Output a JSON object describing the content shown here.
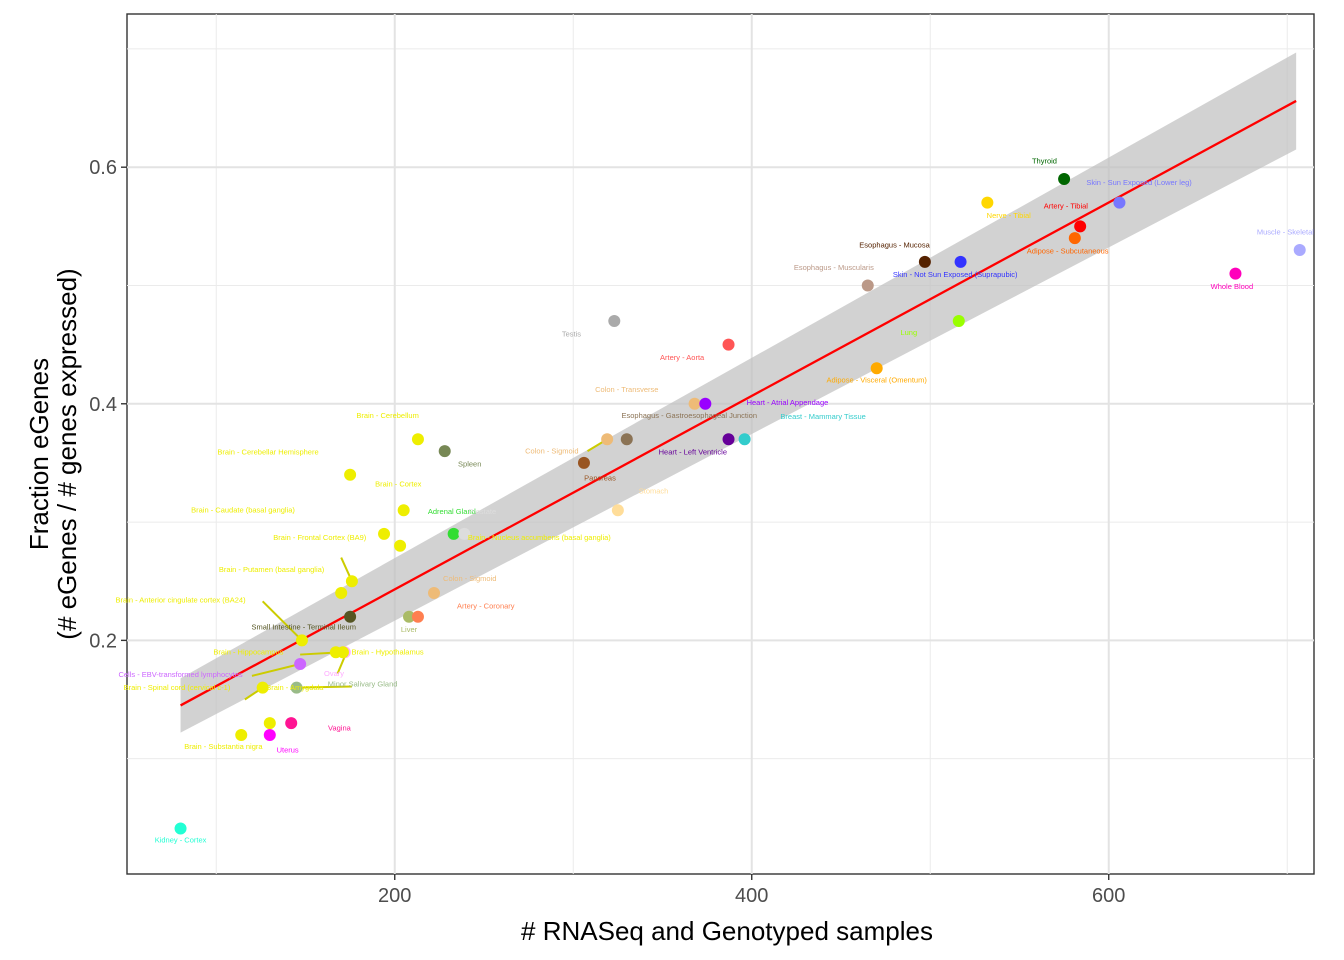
{
  "chart_data": {
    "type": "scatter",
    "xlabel": "# RNASeq and Genotyped samples",
    "ylabel_lines": [
      "Fraction eGenes",
      "(# eGenes / # genes expressed)"
    ],
    "xlim": [
      50,
      715
    ],
    "ylim": [
      0.0025,
      0.7295
    ],
    "x_ticks": [
      200,
      400,
      600
    ],
    "y_ticks": [
      0.2,
      0.4,
      0.6
    ],
    "x_tick_labels": [
      "200",
      "400",
      "600"
    ],
    "y_tick_labels": [
      "0.2",
      "0.4",
      "0.6"
    ],
    "grid": true,
    "fit": {
      "x0": 80,
      "y0": 0.145,
      "x1": 705,
      "y1": 0.656,
      "ci_low": [
        0.122,
        0.615
      ],
      "ci_high": [
        0.168,
        0.697
      ]
    },
    "points": [
      {
        "label": "Kidney - Cortex",
        "x": 80,
        "y": 0.041,
        "color": "#22FFD4",
        "lx": 80,
        "ly": 0.029
      },
      {
        "label": "Brain - Substantia nigra",
        "x": 114,
        "y": 0.12,
        "color": "#EEEE00",
        "lx": 104,
        "ly": 0.108
      },
      {
        "label": "Uterus",
        "x": 130,
        "y": 0.12,
        "color": "#FF00FF",
        "lx": 140,
        "ly": 0.105
      },
      {
        "label": "Vagina",
        "x": 142,
        "y": 0.13,
        "color": "#FF1493",
        "lx": 169,
        "ly": 0.124
      },
      {
        "label": "Brain - Spinal cord (cervical c-1)",
        "x": 130,
        "y": 0.13,
        "color": "#EEEE00",
        "lx": 78,
        "ly": 0.158
      },
      {
        "label": "Brain - Amygdala",
        "x": 126,
        "y": 0.16,
        "color": "#EEEE00",
        "lx": 144,
        "ly": 0.158
      },
      {
        "label": "Minor Salivary Gland",
        "x": 145,
        "y": 0.16,
        "color": "#99BB88",
        "lx": 182,
        "ly": 0.161
      },
      {
        "label": "Cells - EBV-transformed lymphocytes",
        "x": 147,
        "y": 0.18,
        "color": "#CC66FF",
        "lx": 80,
        "ly": 0.169
      },
      {
        "label": "Ovary",
        "x": 172,
        "y": 0.19,
        "color": "#FFAAFF",
        "lx": 166,
        "ly": 0.17
      },
      {
        "label": "Brain - Hippocampus",
        "x": 167,
        "y": 0.19,
        "color": "#EEEE00",
        "lx": 118,
        "ly": 0.188
      },
      {
        "label": "Brain - Hypothalamus",
        "x": 171,
        "y": 0.19,
        "color": "#EEEE00",
        "lx": 196,
        "ly": 0.188
      },
      {
        "label": "Brain - Anterior cingulate cortex (BA24)",
        "x": 148,
        "y": 0.2,
        "color": "#EEEE00",
        "lx": 80,
        "ly": 0.232
      },
      {
        "label": "Small Intestine - Terminal Ileum",
        "x": 175,
        "y": 0.22,
        "color": "#555522",
        "lx": 149,
        "ly": 0.209
      },
      {
        "label": "Liver",
        "x": 208,
        "y": 0.22,
        "color": "#AABB66",
        "lx": 208,
        "ly": 0.207
      },
      {
        "label": "Artery - Coronary",
        "x": 213,
        "y": 0.22,
        "color": "#FF7F50",
        "lx": 251,
        "ly": 0.227
      },
      {
        "label": "Brain - Putamen (basal ganglia)",
        "x": 170,
        "y": 0.24,
        "color": "#EEEE00",
        "lx": 131,
        "ly": 0.258
      },
      {
        "label": "Brain - Frontal Cortex (BA9)",
        "x": 176,
        "y": 0.25,
        "color": "#EEEE00",
        "lx": 158,
        "ly": 0.285
      },
      {
        "label": "Colon - Sigmoid (label)",
        "x": 222,
        "y": 0.24,
        "color": "#EEBB77",
        "lx": 242,
        "ly": 0.25
      },
      {
        "label": "Brain - Caudate (basal ganglia)",
        "x": 194,
        "y": 0.29,
        "color": "#EEEE00",
        "lx": 115,
        "ly": 0.308
      },
      {
        "label": "Brain - Nucleus accumbens (basal ganglia)",
        "x": 203,
        "y": 0.28,
        "color": "#EEEE00",
        "lx": 281,
        "ly": 0.285
      },
      {
        "label": "Adrenal Gland",
        "x": 233,
        "y": 0.29,
        "color": "#33DD33",
        "lx": 232,
        "ly": 0.307
      },
      {
        "label": "Prostate",
        "x": 239,
        "y": 0.29,
        "color": "#DDDDDD",
        "lx": 249,
        "ly": 0.307
      },
      {
        "label": "Brain - Cortex",
        "x": 205,
        "y": 0.31,
        "color": "#EEEE00",
        "lx": 202,
        "ly": 0.33
      },
      {
        "label": "Brain - Cerebellar Hemisphere",
        "x": 175,
        "y": 0.34,
        "color": "#EEEE00",
        "lx": 129,
        "ly": 0.357
      },
      {
        "label": "Spleen",
        "x": 228,
        "y": 0.36,
        "color": "#778855",
        "lx": 242,
        "ly": 0.347
      },
      {
        "label": "Brain - Cerebellum",
        "x": 213,
        "y": 0.37,
        "color": "#EEEE00",
        "lx": 196,
        "ly": 0.388
      },
      {
        "label": "Colon - Sigmoid",
        "x": 319,
        "y": 0.37,
        "color": "#EEBB77",
        "lx": 288,
        "ly": 0.358
      },
      {
        "label": "Esophagus - Gastroesophageal Junction",
        "x": 330,
        "y": 0.37,
        "color": "#8B7355",
        "lx": 365,
        "ly": 0.388
      },
      {
        "label": "Pancreas",
        "x": 306,
        "y": 0.35,
        "color": "#995522",
        "lx": 315,
        "ly": 0.335
      },
      {
        "label": "Stomach",
        "x": 325,
        "y": 0.31,
        "color": "#FFDD99",
        "lx": 345,
        "ly": 0.324
      },
      {
        "label": "Testis",
        "x": 323,
        "y": 0.47,
        "color": "#AAAAAA",
        "lx": 299,
        "ly": 0.457
      },
      {
        "label": "Colon - Transverse",
        "x": 368,
        "y": 0.4,
        "color": "#EEBB77",
        "lx": 330,
        "ly": 0.41
      },
      {
        "label": "Heart - Atrial Appendage",
        "x": 374,
        "y": 0.4,
        "color": "#9900FF",
        "lx": 420,
        "ly": 0.399
      },
      {
        "label": "Heart - Left Ventricle",
        "x": 387,
        "y": 0.37,
        "color": "#660099",
        "lx": 367,
        "ly": 0.357
      },
      {
        "label": "Breast - Mammary Tissue",
        "x": 396,
        "y": 0.37,
        "color": "#33CCCC",
        "lx": 440,
        "ly": 0.387
      },
      {
        "label": "Artery - Aorta",
        "x": 387,
        "y": 0.45,
        "color": "#FF5555",
        "lx": 361,
        "ly": 0.437
      },
      {
        "label": "Adipose - Visceral (Omentum)",
        "x": 470,
        "y": 0.43,
        "color": "#FFAA00",
        "lx": 470,
        "ly": 0.418
      },
      {
        "label": "Esophagus - Muscularis",
        "x": 465,
        "y": 0.5,
        "color": "#BB9988",
        "lx": 446,
        "ly": 0.513
      },
      {
        "label": "Esophagus - Mucosa",
        "x": 497,
        "y": 0.52,
        "color": "#552200",
        "lx": 480,
        "ly": 0.532
      },
      {
        "label": "Skin - Not Sun Exposed (Suprapubic)",
        "x": 517,
        "y": 0.52,
        "color": "#3333FF",
        "lx": 514,
        "ly": 0.507
      },
      {
        "label": "Lung",
        "x": 516,
        "y": 0.47,
        "color": "#99FF00",
        "lx": 488,
        "ly": 0.458
      },
      {
        "label": "Nerve - Tibial",
        "x": 532,
        "y": 0.57,
        "color": "#FFD700",
        "lx": 544,
        "ly": 0.557
      },
      {
        "label": "Adipose - Subcutaneous",
        "x": 581,
        "y": 0.54,
        "color": "#FF6600",
        "lx": 577,
        "ly": 0.527
      },
      {
        "label": "Artery - Tibial",
        "x": 584,
        "y": 0.55,
        "color": "#FF0000",
        "lx": 576,
        "ly": 0.565
      },
      {
        "label": "Thyroid",
        "x": 575,
        "y": 0.59,
        "color": "#006600",
        "lx": 564,
        "ly": 0.603
      },
      {
        "label": "Skin - Sun Exposed (Lower leg)",
        "x": 606,
        "y": 0.57,
        "color": "#7777FF",
        "lx": 617,
        "ly": 0.585
      },
      {
        "label": "Whole Blood",
        "x": 671,
        "y": 0.51,
        "color": "#FF00BB",
        "lx": 669,
        "ly": 0.497
      },
      {
        "label": "Muscle - Skeletal",
        "x": 707,
        "y": 0.53,
        "color": "#AAAAFF",
        "lx": 699,
        "ly": 0.543
      }
    ],
    "leaders": [
      [
        176,
        0.25,
        170,
        0.27
      ],
      [
        148,
        0.2,
        126,
        0.233
      ],
      [
        147,
        0.18,
        120,
        0.17
      ],
      [
        173,
        0.19,
        168,
        0.172
      ],
      [
        145,
        0.16,
        176,
        0.161
      ],
      [
        126,
        0.16,
        116,
        0.15
      ],
      [
        170,
        0.19,
        147,
        0.188
      ],
      [
        319,
        0.37,
        308,
        0.36
      ]
    ]
  }
}
